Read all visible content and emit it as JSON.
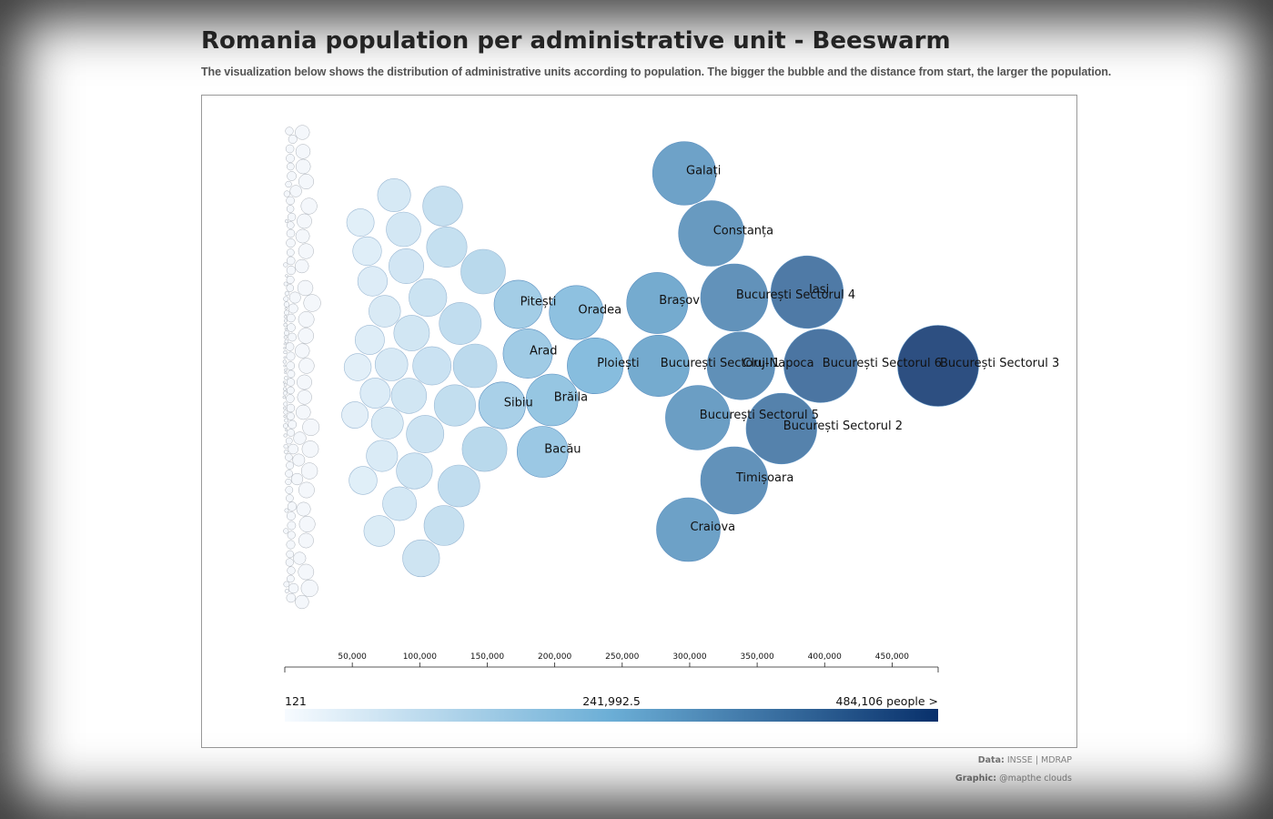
{
  "title": "Romania population per administrative unit - Beeswarm",
  "subtitle": "The visualization below shows the distribution of administrative units according to population. The bigger the bubble and the distance from start, the larger the population.",
  "credits": {
    "data_label": "Data:",
    "data_value": "INSSE | MDRAP",
    "graphic_label": "Graphic:",
    "graphic_value": "@mapthe clouds"
  },
  "chart_data": {
    "type": "scatter",
    "subtype": "beeswarm",
    "x_axis": {
      "min": 0,
      "max": 484106,
      "ticks": [
        50000,
        100000,
        150000,
        200000,
        250000,
        300000,
        350000,
        400000,
        450000
      ],
      "tick_labels": [
        "50,000",
        "100,000",
        "150,000",
        "200,000",
        "250,000",
        "300,000",
        "350,000",
        "400,000",
        "450,000"
      ]
    },
    "color_scale": {
      "scheme": "blues",
      "min_color": "#f7fbff",
      "mid_color": "#6baed6",
      "max_color": "#08306b",
      "min_label": "121",
      "mid_label": "241,992.5",
      "max_label": "484,106 people >"
    },
    "bubble_colors": {
      "small_fill": "#f4f7fb",
      "small_stroke": "#aab0b8"
    },
    "labeled_units": [
      {
        "name": "București Sectorul 3",
        "population": 484106
      },
      {
        "name": "București Sectorul 6",
        "population": 397000
      },
      {
        "name": "Iași",
        "population": 387000
      },
      {
        "name": "București Sectorul 2",
        "population": 368000
      },
      {
        "name": "Cluj-Napoca",
        "population": 338000
      },
      {
        "name": "București Sectorul 4",
        "population": 333000
      },
      {
        "name": "Timișoara",
        "population": 333000
      },
      {
        "name": "Constanța",
        "population": 316000
      },
      {
        "name": "București Sectorul 5",
        "population": 306000
      },
      {
        "name": "Craiova",
        "population": 299000
      },
      {
        "name": "Galați",
        "population": 296000
      },
      {
        "name": "București Sectorul 1",
        "population": 277000
      },
      {
        "name": "Brașov",
        "population": 276000
      },
      {
        "name": "Ploiești",
        "population": 230000
      },
      {
        "name": "Oradea",
        "population": 216000
      },
      {
        "name": "Brăila",
        "population": 198000
      },
      {
        "name": "Bacău",
        "population": 191000
      },
      {
        "name": "Arad",
        "population": 180000
      },
      {
        "name": "Pitești",
        "population": 173000
      },
      {
        "name": "Sibiu",
        "population": 161000
      }
    ],
    "unlabeled_large_units": [
      148000,
      147000,
      141000,
      130000,
      129000,
      126000,
      120000,
      118000,
      117000,
      109000,
      106000,
      104000,
      101000,
      96000,
      94000,
      92000,
      90000,
      88000,
      85000,
      81000,
      79000,
      76000,
      74000,
      72000,
      70000,
      67000,
      65000,
      63000,
      61000,
      58000,
      56000,
      54000,
      52000
    ]
  }
}
